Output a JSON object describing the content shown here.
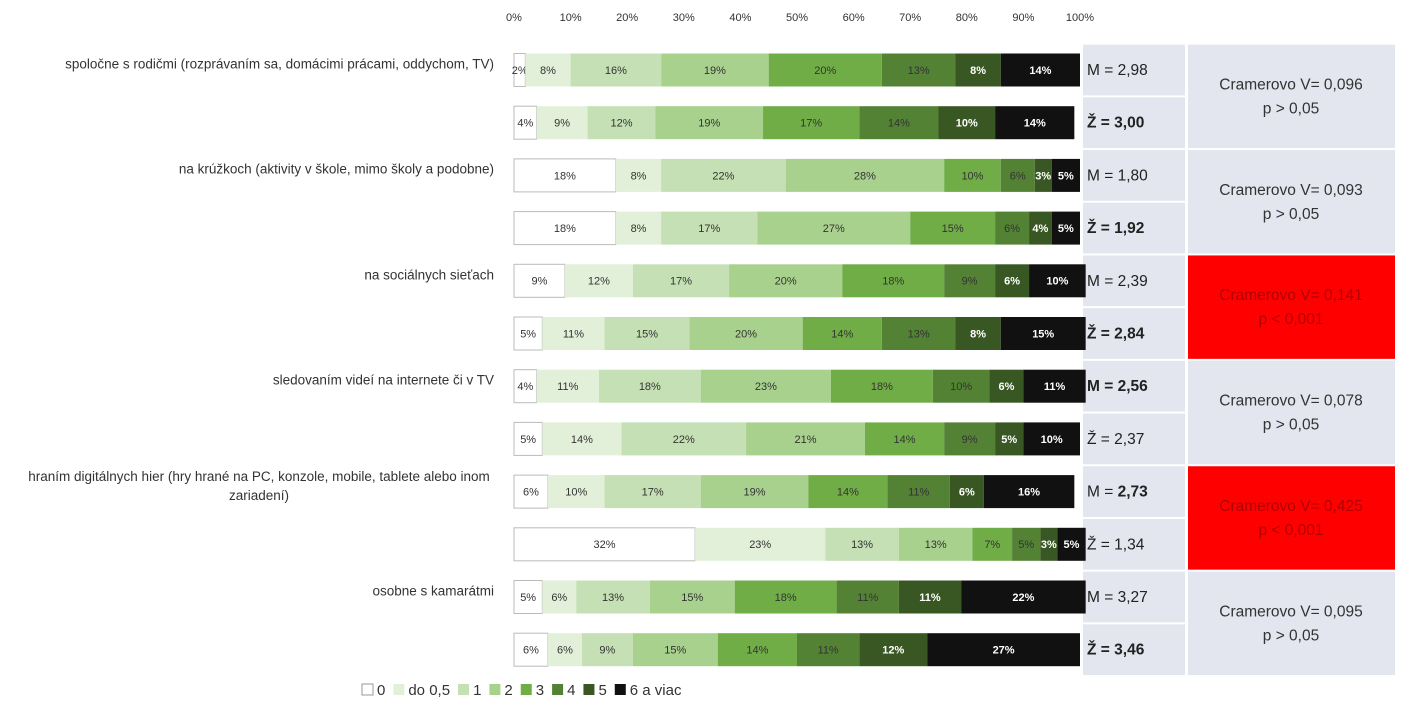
{
  "chart_data": {
    "type": "stacked_bar_horizontal",
    "categories": [
      "spoločne s rodičmi (rozprávaním sa, domácimi prácami, oddychom, TV)",
      null,
      "na krúžkoch (aktivity v škole, mimo školy a podobne)",
      null,
      "na sociálnych sieťach",
      null,
      "sledovaním videí na internete či v TV",
      null,
      "hraním digitálnych hier (hry hrané na PC, konzole, mobile, tablete alebo inom zariadení)",
      null,
      "osobne s kamarátmi",
      null
    ],
    "xlim": [
      0,
      100
    ],
    "xticks": [
      {
        "value": 0,
        "label": "0%"
      },
      {
        "value": 10,
        "label": "10%"
      },
      {
        "value": 20,
        "label": "20%"
      },
      {
        "value": 30,
        "label": "30%"
      },
      {
        "value": 40,
        "label": "40%"
      },
      {
        "value": 50,
        "label": "50%"
      },
      {
        "value": 60,
        "label": "60%"
      },
      {
        "value": 70,
        "label": "70%"
      },
      {
        "value": 80,
        "label": "80%"
      },
      {
        "value": 90,
        "label": "90%"
      },
      {
        "value": 100,
        "label": "100%"
      }
    ],
    "series": [
      {
        "name": "0",
        "color": "#ffffff",
        "label_color": "#333333",
        "values": [
          2,
          4,
          18,
          18,
          9,
          5,
          4,
          5,
          6,
          32,
          5,
          6
        ],
        "value_labels": [
          "2%",
          "4%",
          "18%",
          "18%",
          "9%",
          "5%",
          "4%",
          "5%",
          "6%",
          "32%",
          "5%",
          "6%"
        ]
      },
      {
        "name": "do 0,5",
        "color": "#e2f0d9",
        "label_color": "#333333",
        "values": [
          8,
          9,
          8,
          8,
          12,
          11,
          11,
          14,
          10,
          23,
          6,
          6
        ],
        "value_labels": [
          "8%",
          "9%",
          "8%",
          "8%",
          "12%",
          "11%",
          "11%",
          "14%",
          "10%",
          "23%",
          "6%",
          "6%"
        ]
      },
      {
        "name": "1",
        "color": "#c5e0b4",
        "label_color": "#333333",
        "values": [
          16,
          12,
          22,
          17,
          17,
          15,
          18,
          22,
          17,
          13,
          13,
          9
        ],
        "value_labels": [
          "16%",
          "12%",
          "22%",
          "17%",
          "17%",
          "15%",
          "18%",
          "22%",
          "17%",
          "13%",
          "13%",
          "9%"
        ]
      },
      {
        "name": "2",
        "color": "#a9d18e",
        "label_color": "#333333",
        "values": [
          19,
          19,
          28,
          27,
          20,
          20,
          23,
          21,
          19,
          13,
          15,
          15
        ],
        "value_labels": [
          "19%",
          "19%",
          "28%",
          "27%",
          "20%",
          "20%",
          "23%",
          "21%",
          "19%",
          "13%",
          "15%",
          "15%"
        ]
      },
      {
        "name": "3",
        "color": "#70ad47",
        "label_color": "#333333",
        "values": [
          20,
          17,
          10,
          15,
          18,
          14,
          18,
          14,
          14,
          7,
          18,
          14
        ],
        "value_labels": [
          "20%",
          "17%",
          "10%",
          "15%",
          "18%",
          "14%",
          "18%",
          "14%",
          "14%",
          "7%",
          "18%",
          "14%"
        ]
      },
      {
        "name": "4",
        "color": "#548235",
        "label_color": "#333333",
        "values": [
          13,
          14,
          6,
          6,
          9,
          13,
          10,
          9,
          11,
          5,
          11,
          11
        ],
        "value_labels": [
          "13%",
          "14%",
          "6%",
          "6%",
          "9%",
          "13%",
          "10%",
          "9%",
          "11%",
          "5%",
          "11%",
          "11%"
        ]
      },
      {
        "name": "5",
        "color": "#385723",
        "label_color": "#ffffff",
        "values": [
          8,
          10,
          3,
          4,
          6,
          8,
          6,
          5,
          6,
          3,
          11,
          12
        ],
        "value_labels": [
          "8%",
          "10%",
          "3%",
          "4%",
          "6%",
          "8%",
          "6%",
          "5%",
          "6%",
          "3%",
          "11%",
          "12%"
        ]
      },
      {
        "name": "6 a viac",
        "color": "#111111",
        "label_color": "#ffffff",
        "values": [
          14,
          14,
          5,
          5,
          10,
          15,
          11,
          10,
          16,
          5,
          22,
          27
        ],
        "value_labels": [
          "14%",
          "14%",
          "5%",
          "5%",
          "10%",
          "15%",
          "11%",
          "10%",
          "16%",
          "5%",
          "22%",
          "27%"
        ]
      }
    ],
    "stats": [
      {
        "prefix": "M = ",
        "value": "2,98",
        "bold": "none"
      },
      {
        "prefix": "Ž = ",
        "value": "3,00",
        "bold": "all"
      },
      {
        "prefix": "M = ",
        "value": "1,80",
        "bold": "none"
      },
      {
        "prefix": "Ž = ",
        "value": "1,92",
        "bold": "all"
      },
      {
        "prefix": "M = ",
        "value": "2,39",
        "bold": "none"
      },
      {
        "prefix": "Ž = ",
        "value": "2,84",
        "bold": "all"
      },
      {
        "prefix": "M = ",
        "value": "2,56",
        "bold": "all"
      },
      {
        "prefix": "Ž = ",
        "value": "2,37",
        "bold": "none"
      },
      {
        "prefix": "M = ",
        "value": "2,73",
        "bold": "value"
      },
      {
        "prefix": "Ž = ",
        "value": "1,34",
        "bold": "none"
      },
      {
        "prefix": "M = ",
        "value": "3,27",
        "bold": "none"
      },
      {
        "prefix": "Ž = ",
        "value": "3,46",
        "bold": "all"
      }
    ],
    "cramer": [
      {
        "line1": "Cramerovo V= 0,096",
        "line2": "p > 0,05",
        "highlight": false
      },
      {
        "line1": "Cramerovo V= 0,093",
        "line2": "p > 0,05",
        "highlight": false
      },
      {
        "line1": "Cramerovo V= 0,141",
        "line2": "p < 0,001",
        "highlight": true
      },
      {
        "line1": "Cramerovo V= 0,078",
        "line2": "p > 0,05",
        "highlight": false
      },
      {
        "line1": "Cramerovo V= 0,425",
        "line2": "p < 0,001",
        "highlight": true
      },
      {
        "line1": "Cramerovo V= 0,095",
        "line2": "p > 0,05",
        "highlight": false
      }
    ],
    "cell_color": "#e3e5ef",
    "highlight_color": "#ff0000",
    "highlight_text_color": "#b00000"
  }
}
